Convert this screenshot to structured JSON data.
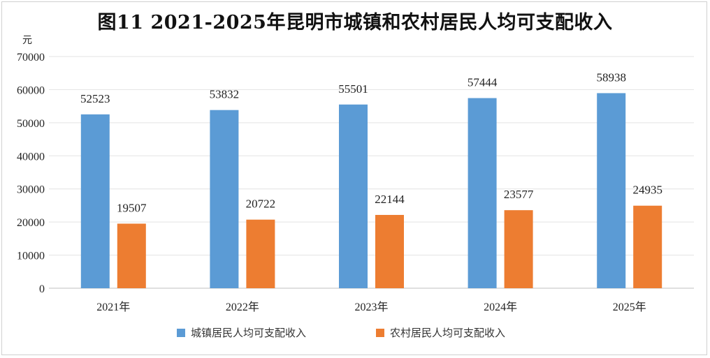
{
  "chart_data": {
    "type": "bar",
    "title": "图11 2021-2025年昆明市城镇和农村居民人均可支配收入",
    "ylabel": "元",
    "categories": [
      "2021年",
      "2022年",
      "2023年",
      "2024年",
      "2025年"
    ],
    "series": [
      {
        "name": "城镇居民人均可支配收入",
        "values": [
          52523,
          53832,
          55501,
          57444,
          58938
        ],
        "color": "#5b9bd5"
      },
      {
        "name": "农村居民人均可支配收入",
        "values": [
          19507,
          20722,
          22144,
          23577,
          24935
        ],
        "color": "#ed7d31"
      }
    ],
    "ylim": [
      0,
      70000
    ],
    "yticks": [
      "0",
      "10000",
      "20000",
      "30000",
      "40000",
      "50000",
      "60000",
      "70000"
    ],
    "grid": true,
    "legend": "bottom"
  }
}
